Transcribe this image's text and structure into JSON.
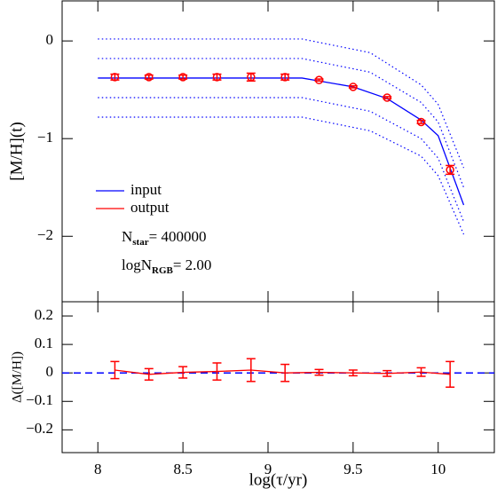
{
  "chart_data": [
    {
      "type": "line",
      "ylabel": "[M/H](t)",
      "xlim": [
        7.79,
        10.33
      ],
      "ylim": [
        -2.67,
        0.41
      ],
      "yticks": [
        {
          "value": 0,
          "label": "0"
        },
        {
          "value": -1,
          "label": "−1"
        },
        {
          "value": -2,
          "label": "−2"
        }
      ],
      "legend": "lower left",
      "series": [
        {
          "name": "input",
          "color": "#0000ff",
          "style": "solid",
          "x": [
            8,
            9.2,
            9.3,
            9.5,
            9.7,
            9.9,
            10.0,
            10.15
          ],
          "values": [
            -0.38,
            -0.38,
            -0.41,
            -0.47,
            -0.59,
            -0.81,
            -0.97,
            -1.68
          ]
        },
        {
          "color": "#0000ff",
          "style": "dotted",
          "x": [
            8,
            9.2,
            9.6,
            9.9,
            10.0,
            10.15
          ],
          "values": [
            0.02,
            0.02,
            -0.12,
            -0.45,
            -0.65,
            -1.3
          ]
        },
        {
          "color": "#0000ff",
          "style": "dotted",
          "x": [
            8,
            9.2,
            9.6,
            9.9,
            10.0,
            10.15
          ],
          "values": [
            -0.18,
            -0.18,
            -0.32,
            -0.63,
            -0.83,
            -1.5
          ]
        },
        {
          "color": "#0000ff",
          "style": "dotted",
          "x": [
            8,
            9.2,
            9.6,
            9.9,
            10.0,
            10.15
          ],
          "values": [
            -0.58,
            -0.58,
            -0.72,
            -1.0,
            -1.2,
            -1.85
          ]
        },
        {
          "color": "#0000ff",
          "style": "dotted",
          "x": [
            8,
            9.2,
            9.6,
            9.9,
            10.0,
            10.15
          ],
          "values": [
            -0.78,
            -0.78,
            -0.92,
            -1.18,
            -1.38,
            -1.98
          ]
        },
        {
          "name": "output",
          "color": "#ff0000",
          "style": "marker",
          "x": [
            8.1,
            8.3,
            8.5,
            8.7,
            8.9,
            9.1,
            9.3,
            9.5,
            9.7,
            9.9,
            10.07
          ],
          "values": [
            -0.37,
            -0.37,
            -0.37,
            -0.37,
            -0.37,
            -0.37,
            -0.4,
            -0.47,
            -0.58,
            -0.83,
            -1.32
          ],
          "errors": [
            0.03,
            0.02,
            0.02,
            0.03,
            0.04,
            0.03,
            0.01,
            0.01,
            0.01,
            0.015,
            0.045
          ]
        }
      ],
      "annotations": [
        {
          "text": "N",
          "sub": "star",
          "rest": "= 400000"
        },
        {
          "text": "logN",
          "sub": "RGB",
          "rest": "= 2.00"
        }
      ]
    },
    {
      "type": "line",
      "xlabel": "log(τ/yr)",
      "ylabel": "Δ([M/H])",
      "xlim": [
        7.79,
        10.33
      ],
      "ylim": [
        -0.28,
        0.25
      ],
      "xticks": [
        8,
        8.5,
        9,
        9.5,
        10
      ],
      "yticks": [
        0.2,
        0.1,
        0,
        {
          "value": -0.1,
          "label": "−0.1"
        },
        {
          "value": -0.2,
          "label": "−0.2"
        }
      ],
      "reference": 0,
      "reference_color": "#0000ff",
      "series": [
        {
          "color": "#ff0000",
          "style": "errorline",
          "x": [
            8.1,
            8.3,
            8.5,
            8.7,
            8.9,
            9.1,
            9.3,
            9.5,
            9.7,
            9.9,
            10.07
          ],
          "values": [
            0.01,
            -0.005,
            0.002,
            0.005,
            0.01,
            0,
            0.002,
            0,
            -0.002,
            0.003,
            -0.005
          ],
          "errors": [
            0.03,
            0.02,
            0.02,
            0.03,
            0.04,
            0.03,
            0.01,
            0.01,
            0.01,
            0.015,
            0.045
          ]
        }
      ]
    }
  ]
}
